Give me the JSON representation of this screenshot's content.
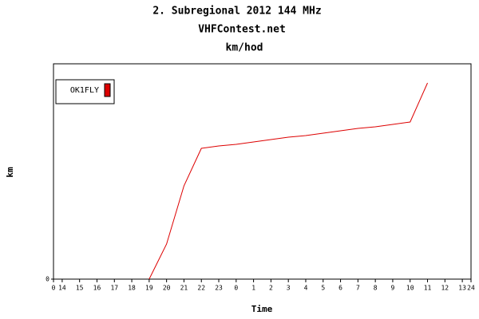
{
  "chart_data": {
    "type": "line",
    "title": "2. Subregional 2012 144 MHz",
    "subtitle": "VHFContest.net",
    "subtitle2": "km/hod",
    "x_label": "Time",
    "y_label": "km",
    "x": [
      5.5,
      6.5,
      7.5,
      8.5,
      9.5,
      10.5,
      11.5,
      12.5,
      13.5,
      14.5,
      15.5,
      16.5,
      17.5,
      18.5,
      19.5,
      20.5,
      21.5
    ],
    "series": [
      {
        "name": "OK1FLY",
        "color": "#dd0000",
        "values": [
          0,
          44,
          117,
          164,
          167,
          169,
          172,
          175,
          178,
          180,
          183,
          186,
          189,
          191,
          194,
          197,
          246
        ]
      }
    ],
    "xlim": [
      0,
      24
    ],
    "xticks": [
      0,
      {
        "value": 0.5,
        "label": "14"
      },
      {
        "value": 1.5,
        "label": "15"
      },
      {
        "value": 2.5,
        "label": "16"
      },
      {
        "value": 3.5,
        "label": "17"
      },
      {
        "value": 4.5,
        "label": "18"
      },
      {
        "value": 5.5,
        "label": "19"
      },
      {
        "value": 6.5,
        "label": "20"
      },
      {
        "value": 7.5,
        "label": "21"
      },
      {
        "value": 8.5,
        "label": "22"
      },
      {
        "value": 9.5,
        "label": "23"
      },
      {
        "value": 10.5,
        "label": "0"
      },
      {
        "value": 11.5,
        "label": "1"
      },
      {
        "value": 12.5,
        "label": "2"
      },
      {
        "value": 13.5,
        "label": "3"
      },
      {
        "value": 14.5,
        "label": "4"
      },
      {
        "value": 15.5,
        "label": "5"
      },
      {
        "value": 16.5,
        "label": "6"
      },
      {
        "value": 17.5,
        "label": "7"
      },
      {
        "value": 18.5,
        "label": "8"
      },
      {
        "value": 19.5,
        "label": "9"
      },
      {
        "value": 20.5,
        "label": "10"
      },
      {
        "value": 21.5,
        "label": "11"
      },
      {
        "value": 22.5,
        "label": "12"
      },
      {
        "value": 23.5,
        "label": "13"
      },
      24
    ],
    "ylim": [
      0,
      270
    ],
    "yticks": [
      0
    ],
    "legend": "top-left"
  }
}
